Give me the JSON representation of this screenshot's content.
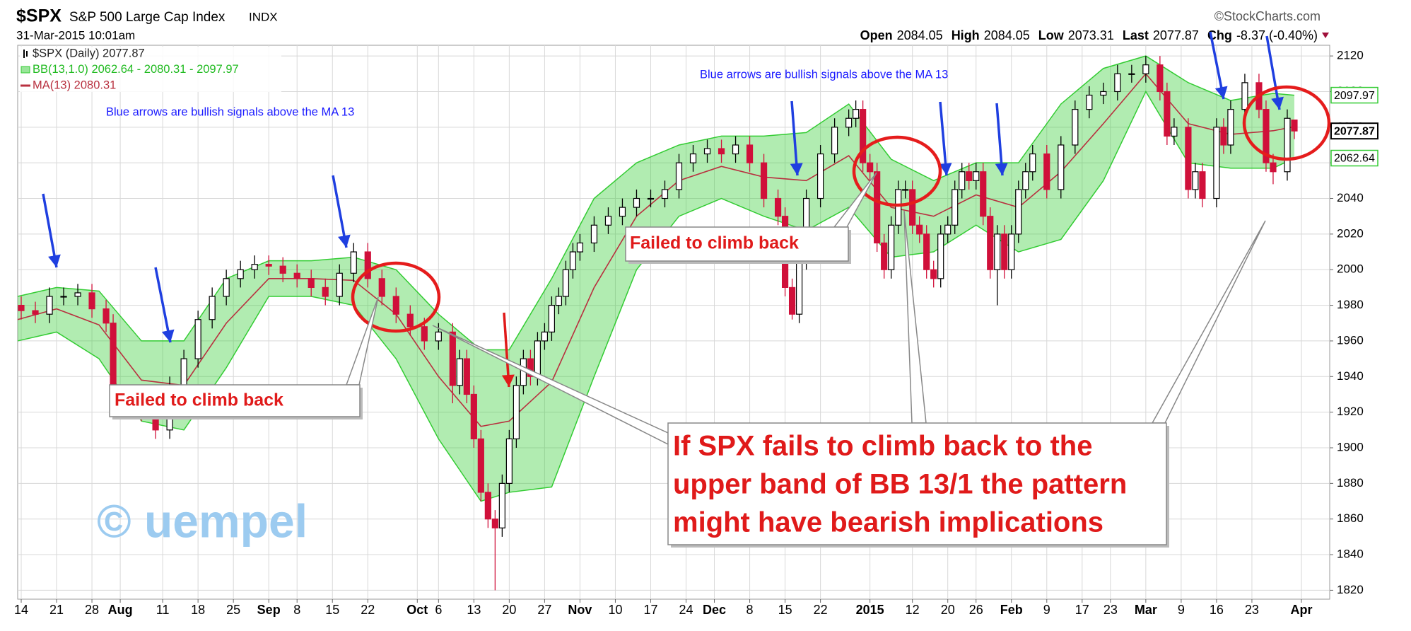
{
  "chart_data": {
    "type": "candlestick",
    "title": "$SPX",
    "subtitle": "S&P 500 Large Cap Index",
    "exchange": "INDX",
    "date": "31-Mar-2015 10:01am",
    "source": "©StockCharts.com",
    "quote_labels": {
      "open": "Open",
      "high": "High",
      "low": "Low",
      "last": "Last",
      "chg": "Chg"
    },
    "change": "-8.37 (-0.40%)",
    "legend": [
      "$SPX (Daily) 2077.87",
      "BB(13,1.0) 2062.64 - 2080.31 - 2097.97",
      "MA(13) 2080.31"
    ],
    "up_color": "#000000",
    "down_color": "#d0103a",
    "band_color": "#33cc33",
    "ma_color": "#b8303f",
    "x": [
      1,
      3,
      5,
      7,
      9,
      11,
      13,
      14,
      16,
      18,
      20,
      22,
      24,
      26,
      28,
      30,
      32,
      34,
      36,
      38,
      40,
      42,
      44,
      46,
      48,
      50,
      52,
      54,
      56,
      58,
      60,
      62,
      63,
      64,
      65,
      66,
      67,
      68,
      69,
      70,
      71,
      72,
      73,
      74,
      75,
      76,
      77,
      78,
      79,
      80,
      82,
      84,
      86,
      88,
      90,
      92,
      94,
      96,
      98,
      100,
      102,
      104,
      106,
      108,
      109,
      110,
      111,
      112,
      114,
      116,
      118,
      119,
      120,
      121,
      122,
      123,
      124,
      125,
      126,
      127,
      128,
      129,
      130,
      131,
      132,
      133,
      134,
      135,
      136,
      137,
      138,
      139,
      140,
      141,
      142,
      143,
      144,
      146,
      148,
      150,
      152,
      154,
      156,
      158,
      160,
      162,
      163,
      164,
      166,
      167,
      168,
      170,
      171,
      172,
      174,
      176,
      177,
      178,
      180,
      181
    ],
    "open": [
      1980,
      1977,
      1975,
      1985,
      1985,
      1987,
      1978,
      1970,
      1930,
      1925,
      1920,
      1910,
      1935,
      1950,
      1972,
      1985,
      1995,
      2000,
      2003,
      2002,
      1998,
      1995,
      1990,
      1985,
      1998,
      2010,
      1995,
      1985,
      1975,
      1968,
      1960,
      1965,
      1935,
      1950,
      1930,
      1905,
      1875,
      1860,
      1855,
      1880,
      1905,
      1935,
      1950,
      1940,
      1960,
      1965,
      1980,
      1985,
      2000,
      2010,
      2015,
      2025,
      2030,
      2035,
      2040,
      2040,
      2045,
      2060,
      2065,
      2068,
      2065,
      2070,
      2060,
      2040,
      2030,
      1990,
      1975,
      2005,
      2040,
      2065,
      2080,
      2085,
      2090,
      2060,
      2055,
      2015,
      2000,
      2025,
      2045,
      2045,
      2025,
      2020,
      2000,
      1995,
      2020,
      2025,
      2045,
      2055,
      2050,
      2055,
      2030,
      2000,
      2020,
      2000,
      2020,
      2045,
      2055,
      2065,
      2045,
      2070,
      2090,
      2098,
      2100,
      2110,
      2110,
      2115,
      2100,
      2075,
      2080,
      2045,
      2055,
      2040,
      2080,
      2070,
      2090,
      2105,
      2090,
      2060,
      2055,
      2084.05
    ],
    "high": [
      1985,
      1982,
      1990,
      1990,
      1992,
      1992,
      1983,
      1975,
      1935,
      1930,
      1925,
      1940,
      1955,
      1977,
      1990,
      2000,
      2005,
      2008,
      2008,
      2007,
      2003,
      2000,
      1995,
      2003,
      2015,
      2015,
      2000,
      1990,
      1980,
      1973,
      1970,
      1970,
      1955,
      1955,
      1935,
      1910,
      1880,
      1865,
      1885,
      1910,
      1940,
      1955,
      1955,
      1965,
      1970,
      1985,
      1990,
      2005,
      2015,
      2020,
      2030,
      2035,
      2040,
      2045,
      2045,
      2050,
      2065,
      2070,
      2073,
      2073,
      2075,
      2075,
      2065,
      2045,
      2035,
      1995,
      2010,
      2045,
      2070,
      2085,
      2090,
      2095,
      2095,
      2065,
      2060,
      2020,
      2030,
      2050,
      2050,
      2050,
      2030,
      2025,
      2005,
      2025,
      2030,
      2050,
      2060,
      2060,
      2060,
      2060,
      2035,
      2025,
      2025,
      2025,
      2050,
      2060,
      2070,
      2070,
      2075,
      2095,
      2103,
      2105,
      2115,
      2115,
      2120,
      2120,
      2105,
      2085,
      2085,
      2060,
      2060,
      2085,
      2085,
      2095,
      2110,
      2110,
      2095,
      2065,
      2090,
      2084.05
    ],
    "low": [
      1972,
      1970,
      1970,
      1980,
      1980,
      1973,
      1965,
      1925,
      1920,
      1915,
      1905,
      1905,
      1930,
      1945,
      1967,
      1980,
      1990,
      1995,
      1997,
      1993,
      1990,
      1985,
      1980,
      1980,
      1993,
      1990,
      1980,
      1970,
      1963,
      1955,
      1955,
      1925,
      1930,
      1925,
      1900,
      1870,
      1855,
      1820,
      1850,
      1875,
      1900,
      1930,
      1935,
      1935,
      1955,
      1960,
      1975,
      1980,
      1995,
      2005,
      2010,
      2020,
      2025,
      2030,
      2035,
      2035,
      2040,
      2055,
      2060,
      2060,
      2060,
      2055,
      2035,
      2025,
      1985,
      1972,
      1970,
      2000,
      2035,
      2060,
      2075,
      2080,
      2055,
      2050,
      2010,
      1995,
      1995,
      2020,
      2040,
      2020,
      2015,
      1995,
      1990,
      1990,
      2015,
      2020,
      2040,
      2045,
      2045,
      2025,
      1995,
      1980,
      1995,
      1995,
      2015,
      2040,
      2050,
      2040,
      2040,
      2065,
      2085,
      2093,
      2095,
      2105,
      2105,
      2095,
      2070,
      2070,
      2040,
      2040,
      2035,
      2035,
      2065,
      2065,
      2085,
      2085,
      2055,
      2048,
      2050,
      2073.31
    ],
    "close": [
      1977,
      1975,
      1985,
      1985,
      1987,
      1978,
      1970,
      1930,
      1925,
      1920,
      1910,
      1935,
      1950,
      1972,
      1985,
      1995,
      2000,
      2003,
      2002,
      1998,
      1995,
      1990,
      1985,
      1998,
      2010,
      1995,
      1985,
      1975,
      1968,
      1960,
      1965,
      1935,
      1950,
      1930,
      1905,
      1875,
      1860,
      1855,
      1880,
      1905,
      1935,
      1950,
      1940,
      1960,
      1965,
      1980,
      1985,
      2000,
      2010,
      2015,
      2025,
      2030,
      2035,
      2040,
      2040,
      2045,
      2060,
      2065,
      2068,
      2065,
      2070,
      2060,
      2040,
      2030,
      1990,
      1975,
      2005,
      2040,
      2065,
      2080,
      2085,
      2090,
      2060,
      2055,
      2015,
      2000,
      2025,
      2045,
      2045,
      2025,
      2020,
      2000,
      1995,
      2020,
      2025,
      2045,
      2055,
      2050,
      2055,
      2030,
      2000,
      2020,
      2000,
      2020,
      2045,
      2055,
      2065,
      2045,
      2070,
      2090,
      2098,
      2100,
      2110,
      2110,
      2115,
      2100,
      2075,
      2080,
      2045,
      2055,
      2040,
      2080,
      2070,
      2090,
      2105,
      2090,
      2060,
      2055,
      2085,
      2077.87
    ],
    "bb_x": [
      0.5,
      6,
      12,
      18,
      24,
      30,
      36,
      42,
      48,
      54,
      60,
      66,
      70,
      76,
      82,
      88,
      94,
      100,
      106,
      112,
      118,
      124,
      130,
      136,
      142,
      148,
      154,
      160,
      166,
      172,
      178,
      181
    ],
    "bb_upper": [
      1985,
      1990,
      1988,
      1960,
      1960,
      1995,
      2005,
      2005,
      2007,
      2000,
      1975,
      1955,
      1955,
      1995,
      2040,
      2060,
      2070,
      2075,
      2075,
      2077,
      2093,
      2062,
      2050,
      2060,
      2060,
      2093,
      2113,
      2120,
      2105,
      2095,
      2099,
      2097.97
    ],
    "bb_lower": [
      1960,
      1965,
      1950,
      1915,
      1910,
      1945,
      1985,
      1985,
      1980,
      1950,
      1905,
      1870,
      1875,
      1878,
      1940,
      2000,
      2030,
      2040,
      2030,
      2022,
      2035,
      2007,
      2010,
      2025,
      2010,
      2017,
      2050,
      2100,
      2060,
      2057,
      2057,
      2062.64
    ],
    "ma": [
      1972,
      1978,
      1969,
      1938,
      1935,
      1970,
      1995,
      1995,
      1994,
      1975,
      1940,
      1912,
      1915,
      1937,
      1990,
      2030,
      2050,
      2058,
      2052,
      2050,
      2064,
      2035,
      2030,
      2042,
      2035,
      2055,
      2082,
      2110,
      2082,
      2076,
      2078,
      2080.31
    ],
    "xlim": [
      0.5,
      186
    ],
    "xticks": [
      {
        "value": 1,
        "label": "14"
      },
      {
        "value": 6,
        "label": "21"
      },
      {
        "value": 11,
        "label": "28"
      },
      {
        "value": 15,
        "label": "Aug"
      },
      {
        "value": 21,
        "label": "11"
      },
      {
        "value": 26,
        "label": "18"
      },
      {
        "value": 31,
        "label": "25"
      },
      {
        "value": 36,
        "label": "Sep"
      },
      {
        "value": 40,
        "label": "8"
      },
      {
        "value": 45,
        "label": "15"
      },
      {
        "value": 50,
        "label": "22"
      },
      {
        "value": 57,
        "label": "Oct"
      },
      {
        "value": 60,
        "label": "6"
      },
      {
        "value": 65,
        "label": "13"
      },
      {
        "value": 70,
        "label": "20"
      },
      {
        "value": 75,
        "label": "27"
      },
      {
        "value": 80,
        "label": "Nov"
      },
      {
        "value": 85,
        "label": "10"
      },
      {
        "value": 90,
        "label": "17"
      },
      {
        "value": 95,
        "label": "24"
      },
      {
        "value": 99,
        "label": "Dec"
      },
      {
        "value": 104,
        "label": "8"
      },
      {
        "value": 109,
        "label": "15"
      },
      {
        "value": 114,
        "label": "22"
      },
      {
        "value": 121,
        "label": "2015"
      },
      {
        "value": 127,
        "label": "12"
      },
      {
        "value": 132,
        "label": "20"
      },
      {
        "value": 136,
        "label": "26"
      },
      {
        "value": 141,
        "label": "Feb"
      },
      {
        "value": 146,
        "label": "9"
      },
      {
        "value": 151,
        "label": "17"
      },
      {
        "value": 155,
        "label": "23"
      },
      {
        "value": 160,
        "label": "Mar"
      },
      {
        "value": 165,
        "label": "9"
      },
      {
        "value": 170,
        "label": "16"
      },
      {
        "value": 175,
        "label": "23"
      },
      {
        "value": 182,
        "label": "Apr"
      }
    ],
    "ylim": [
      1815,
      2126
    ],
    "yticks": [
      1820,
      1840,
      1860,
      1880,
      1900,
      1920,
      1940,
      1960,
      1980,
      2000,
      2020,
      2040,
      2060,
      2080,
      2100,
      2120
    ],
    "grid": true,
    "annotations": {
      "notes": [
        "Blue arrows are bullish signals above the MA 13",
        "Blue arrows are bullish signals above the MA 13"
      ],
      "failed": [
        "Failed to climb back",
        "Failed to climb back"
      ],
      "conclusion": [
        "If SPX fails to climb back to the",
        "upper band of BB 13/1 the pattern",
        "might have bearish implications"
      ],
      "watermark": "© uempel"
    }
  }
}
